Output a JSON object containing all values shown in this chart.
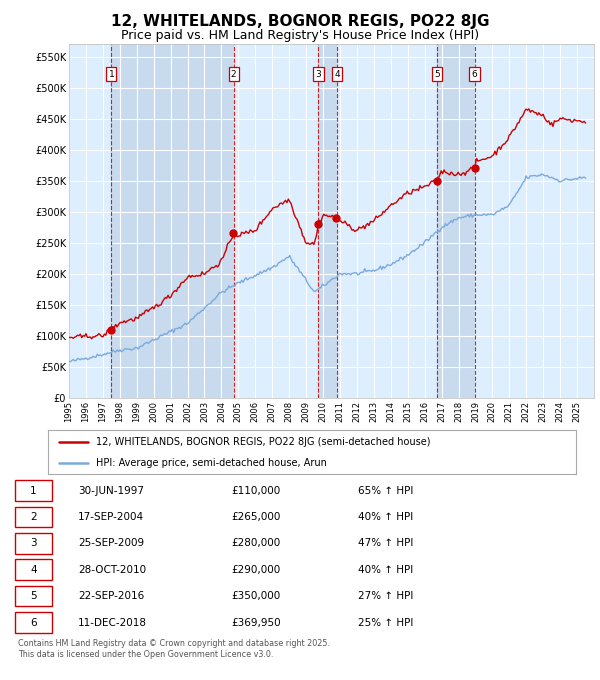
{
  "title": "12, WHITELANDS, BOGNOR REGIS, PO22 8JG",
  "subtitle": "Price paid vs. HM Land Registry's House Price Index (HPI)",
  "title_fontsize": 11,
  "subtitle_fontsize": 9,
  "fig_bg_color": "#ffffff",
  "plot_bg_color": "#ddeeff",
  "band_color_light": "#ddeeff",
  "band_color_dark": "#c8daee",
  "red_line_color": "#cc0000",
  "blue_line_color": "#7aaadd",
  "sale_marker_color": "#cc0000",
  "vline_red_color": "#cc0000",
  "grid_color": "#ffffff",
  "ylim": [
    0,
    570000
  ],
  "yticks": [
    0,
    50000,
    100000,
    150000,
    200000,
    250000,
    300000,
    350000,
    400000,
    450000,
    500000,
    550000
  ],
  "ytick_labels": [
    "£0",
    "£50K",
    "£100K",
    "£150K",
    "£200K",
    "£250K",
    "£300K",
    "£350K",
    "£400K",
    "£450K",
    "£500K",
    "£550K"
  ],
  "sales": [
    {
      "num": 1,
      "date_str": "30-JUN-1997",
      "year": 1997.5,
      "price": 110000,
      "hpi_pct": "65% ↑ HPI"
    },
    {
      "num": 2,
      "date_str": "17-SEP-2004",
      "year": 2004.72,
      "price": 265000,
      "hpi_pct": "40% ↑ HPI"
    },
    {
      "num": 3,
      "date_str": "25-SEP-2009",
      "year": 2009.73,
      "price": 280000,
      "hpi_pct": "47% ↑ HPI"
    },
    {
      "num": 4,
      "date_str": "28-OCT-2010",
      "year": 2010.82,
      "price": 290000,
      "hpi_pct": "40% ↑ HPI"
    },
    {
      "num": 5,
      "date_str": "22-SEP-2016",
      "year": 2016.73,
      "price": 350000,
      "hpi_pct": "27% ↑ HPI"
    },
    {
      "num": 6,
      "date_str": "11-DEC-2018",
      "year": 2018.95,
      "price": 369950,
      "hpi_pct": "25% ↑ HPI"
    }
  ],
  "legend_label_red": "12, WHITELANDS, BOGNOR REGIS, PO22 8JG (semi-detached house)",
  "legend_label_blue": "HPI: Average price, semi-detached house, Arun",
  "footer_text": "Contains HM Land Registry data © Crown copyright and database right 2025.\nThis data is licensed under the Open Government Licence v3.0.",
  "xmin": 1995,
  "xmax": 2025.5,
  "table_rows": [
    [
      "1",
      "30-JUN-1997",
      "£110,000",
      "65% ↑ HPI"
    ],
    [
      "2",
      "17-SEP-2004",
      "£265,000",
      "40% ↑ HPI"
    ],
    [
      "3",
      "25-SEP-2009",
      "£280,000",
      "47% ↑ HPI"
    ],
    [
      "4",
      "28-OCT-2010",
      "£290,000",
      "40% ↑ HPI"
    ],
    [
      "5",
      "22-SEP-2016",
      "£350,000",
      "27% ↑ HPI"
    ],
    [
      "6",
      "11-DEC-2018",
      "£369,950",
      "25% ↑ HPI"
    ]
  ]
}
